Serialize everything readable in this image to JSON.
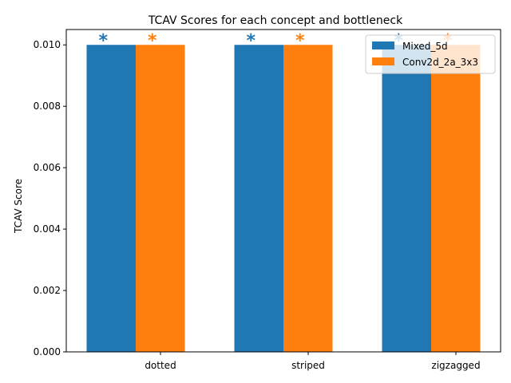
{
  "chart_data": {
    "type": "bar",
    "title": "TCAV Scores for each concept and bottleneck",
    "xlabel": "",
    "ylabel": "TCAV Score",
    "categories": [
      "dotted",
      "striped",
      "zigzagged"
    ],
    "series": [
      {
        "name": "Mixed_5d",
        "values": [
          0.01,
          0.01,
          0.01
        ],
        "color": "#1f77b4",
        "significant": [
          true,
          true,
          true
        ]
      },
      {
        "name": "Conv2d_2a_3x3",
        "values": [
          0.01,
          0.01,
          0.01
        ],
        "color": "#ff7f0e",
        "significant": [
          true,
          true,
          true
        ]
      }
    ],
    "significance_marker": "*",
    "ylim": [
      0,
      0.0105
    ],
    "yticks": [
      0.0,
      0.002,
      0.004,
      0.006,
      0.008,
      0.01
    ],
    "ytick_labels": [
      "0.000",
      "0.002",
      "0.004",
      "0.006",
      "0.008",
      "0.010"
    ],
    "grid": false,
    "legend_position": "upper-right"
  }
}
